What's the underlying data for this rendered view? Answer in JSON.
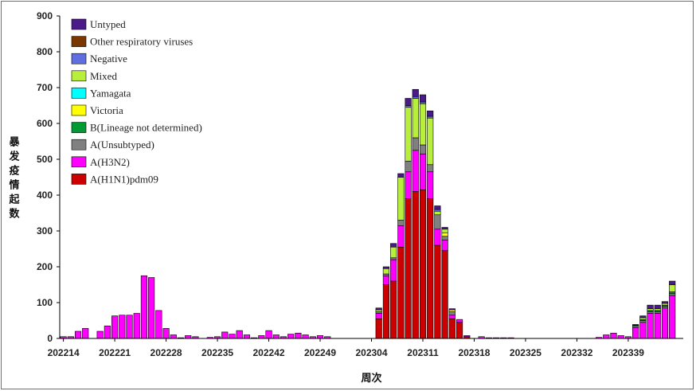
{
  "chart_data": {
    "type": "bar",
    "stacked": true,
    "ylabel": "暴发疫情起数",
    "xlabel": "周次",
    "ylim": [
      0,
      900
    ],
    "yticks": [
      0,
      100,
      200,
      300,
      400,
      500,
      600,
      700,
      800,
      900
    ],
    "xtick_labels": [
      "202214",
      "202221",
      "202228",
      "202235",
      "202242",
      "202249",
      "202304",
      "202311",
      "202318",
      "202325",
      "202332",
      "202339"
    ],
    "xtick_every": 7,
    "grid": false,
    "legend_position": "top-left",
    "legend_order": [
      "Untyped",
      "Other respiratory viruses",
      "Negative",
      "Mixed",
      "Yamagata",
      "Victoria",
      "B(Lineage not determined)",
      "A(Unsubtyped)",
      "A(H3N2)",
      "A(H1N1)pdm09"
    ],
    "colors": {
      "A(H1N1)pdm09": "#cc0000",
      "A(H3N2)": "#ff00ff",
      "A(Unsubtyped)": "#808080",
      "B(Lineage not determined)": "#009933",
      "Victoria": "#ffff00",
      "Yamagata": "#00ffff",
      "Mixed": "#b7ef3c",
      "Negative": "#5f6ee0",
      "Other respiratory viruses": "#7a3800",
      "Untyped": "#4b1a8a"
    },
    "weeks": [
      "202214",
      "202215",
      "202216",
      "202217",
      "202218",
      "202219",
      "202220",
      "202221",
      "202222",
      "202223",
      "202224",
      "202225",
      "202226",
      "202227",
      "202228",
      "202229",
      "202230",
      "202231",
      "202232",
      "202233",
      "202234",
      "202235",
      "202236",
      "202237",
      "202238",
      "202239",
      "202240",
      "202241",
      "202242",
      "202243",
      "202244",
      "202245",
      "202246",
      "202247",
      "202248",
      "202249",
      "202250",
      "202251",
      "202252",
      "202301",
      "202302",
      "202303",
      "202304",
      "202305",
      "202306",
      "202307",
      "202308",
      "202309",
      "202310",
      "202311",
      "202312",
      "202313",
      "202314",
      "202315",
      "202316",
      "202317",
      "202318",
      "202319",
      "202320",
      "202321",
      "202322",
      "202323",
      "202324",
      "202325",
      "202326",
      "202327",
      "202328",
      "202329",
      "202330",
      "202331",
      "202332",
      "202333",
      "202334",
      "202335",
      "202336",
      "202337",
      "202338",
      "202339",
      "202340",
      "202341",
      "202342",
      "202343",
      "202344",
      "202345",
      "202346"
    ],
    "series": [
      {
        "name": "A(H1N1)pdm09",
        "values": [
          0,
          0,
          0,
          0,
          0,
          0,
          0,
          0,
          0,
          0,
          0,
          0,
          0,
          0,
          0,
          0,
          0,
          0,
          0,
          0,
          0,
          0,
          0,
          0,
          0,
          0,
          0,
          0,
          0,
          0,
          0,
          0,
          0,
          0,
          0,
          0,
          0,
          0,
          0,
          0,
          0,
          0,
          0,
          55,
          150,
          160,
          255,
          390,
          410,
          415,
          390,
          260,
          245,
          55,
          45,
          5,
          0,
          0,
          0,
          0,
          0,
          0,
          0,
          0,
          0,
          0,
          0,
          0,
          0,
          0,
          0,
          0,
          0,
          0,
          0,
          0,
          0,
          0,
          0,
          0,
          0,
          0,
          0,
          0,
          0
        ]
      },
      {
        "name": "A(H3N2)",
        "values": [
          5,
          5,
          20,
          28,
          0,
          20,
          35,
          63,
          65,
          65,
          70,
          175,
          170,
          78,
          28,
          10,
          2,
          8,
          5,
          0,
          3,
          5,
          18,
          12,
          22,
          10,
          2,
          8,
          22,
          10,
          5,
          12,
          15,
          10,
          5,
          8,
          5,
          0,
          0,
          0,
          0,
          0,
          0,
          15,
          25,
          60,
          60,
          75,
          115,
          100,
          75,
          45,
          30,
          10,
          8,
          3,
          0,
          5,
          2,
          2,
          2,
          2,
          0,
          0,
          0,
          0,
          0,
          0,
          0,
          0,
          0,
          0,
          0,
          3,
          10,
          15,
          8,
          5,
          30,
          45,
          70,
          70,
          85,
          120,
          0
        ]
      },
      {
        "name": "A(Unsubtyped)",
        "values": [
          0,
          0,
          0,
          0,
          0,
          0,
          0,
          0,
          0,
          0,
          0,
          0,
          0,
          0,
          0,
          0,
          0,
          0,
          0,
          0,
          0,
          0,
          0,
          0,
          0,
          0,
          0,
          0,
          0,
          0,
          0,
          0,
          0,
          0,
          0,
          0,
          0,
          0,
          0,
          0,
          0,
          0,
          0,
          5,
          5,
          5,
          15,
          30,
          35,
          25,
          20,
          40,
          10,
          10,
          0,
          0,
          0,
          0,
          0,
          0,
          0,
          0,
          0,
          0,
          0,
          0,
          0,
          0,
          0,
          0,
          0,
          0,
          0,
          0,
          0,
          0,
          0,
          0,
          5,
          5,
          5,
          5,
          5,
          5,
          0
        ]
      },
      {
        "name": "B(Lineage not determined)",
        "values": [
          0,
          0,
          0,
          0,
          0,
          0,
          0,
          0,
          0,
          0,
          0,
          0,
          0,
          0,
          0,
          0,
          0,
          0,
          0,
          0,
          0,
          0,
          0,
          0,
          0,
          0,
          0,
          0,
          0,
          0,
          0,
          0,
          0,
          0,
          0,
          0,
          0,
          0,
          0,
          0,
          0,
          0,
          0,
          0,
          0,
          0,
          0,
          0,
          0,
          0,
          0,
          0,
          0,
          0,
          0,
          0,
          0,
          0,
          0,
          0,
          0,
          0,
          0,
          0,
          0,
          0,
          0,
          0,
          0,
          0,
          0,
          0,
          0,
          0,
          0,
          0,
          0,
          0,
          2,
          3,
          3,
          3,
          3,
          5,
          0
        ]
      },
      {
        "name": "Victoria",
        "values": [
          0,
          0,
          0,
          0,
          0,
          0,
          0,
          0,
          0,
          0,
          0,
          0,
          0,
          0,
          0,
          0,
          0,
          0,
          0,
          0,
          0,
          0,
          0,
          0,
          0,
          0,
          0,
          0,
          0,
          0,
          0,
          0,
          0,
          0,
          0,
          0,
          0,
          0,
          0,
          0,
          0,
          0,
          0,
          0,
          0,
          0,
          0,
          0,
          0,
          0,
          0,
          0,
          10,
          5,
          0,
          0,
          0,
          0,
          0,
          0,
          0,
          0,
          0,
          0,
          0,
          0,
          0,
          0,
          0,
          0,
          0,
          0,
          0,
          0,
          0,
          0,
          0,
          0,
          0,
          0,
          0,
          0,
          0,
          0,
          0
        ]
      },
      {
        "name": "Yamagata",
        "values": [
          0,
          0,
          0,
          0,
          0,
          0,
          0,
          0,
          0,
          0,
          0,
          0,
          0,
          0,
          0,
          0,
          0,
          0,
          0,
          0,
          0,
          0,
          0,
          0,
          0,
          0,
          0,
          0,
          0,
          0,
          0,
          0,
          0,
          0,
          0,
          0,
          0,
          0,
          0,
          0,
          0,
          0,
          0,
          0,
          0,
          0,
          0,
          0,
          0,
          0,
          0,
          0,
          0,
          0,
          0,
          0,
          0,
          0,
          0,
          0,
          0,
          0,
          0,
          0,
          0,
          0,
          0,
          0,
          0,
          0,
          0,
          0,
          0,
          0,
          0,
          0,
          0,
          0,
          0,
          0,
          0,
          0,
          0,
          0,
          0
        ]
      },
      {
        "name": "Mixed",
        "values": [
          0,
          0,
          0,
          0,
          0,
          0,
          0,
          0,
          0,
          0,
          0,
          0,
          0,
          0,
          0,
          0,
          0,
          0,
          0,
          0,
          0,
          0,
          0,
          0,
          0,
          0,
          0,
          0,
          0,
          0,
          0,
          0,
          0,
          0,
          0,
          0,
          0,
          0,
          0,
          0,
          0,
          0,
          0,
          5,
          15,
          30,
          120,
          150,
          110,
          115,
          130,
          10,
          10,
          0,
          0,
          0,
          0,
          0,
          0,
          0,
          0,
          0,
          0,
          0,
          0,
          0,
          0,
          0,
          0,
          0,
          0,
          0,
          0,
          0,
          0,
          0,
          0,
          0,
          0,
          5,
          5,
          5,
          5,
          20,
          0
        ]
      },
      {
        "name": "Negative",
        "values": [
          0,
          0,
          0,
          0,
          0,
          0,
          0,
          0,
          0,
          0,
          0,
          0,
          0,
          0,
          0,
          0,
          0,
          0,
          0,
          0,
          0,
          0,
          0,
          0,
          0,
          0,
          0,
          0,
          0,
          0,
          0,
          0,
          0,
          0,
          0,
          0,
          0,
          0,
          0,
          0,
          0,
          0,
          0,
          0,
          0,
          0,
          0,
          5,
          5,
          5,
          5,
          5,
          0,
          0,
          0,
          0,
          0,
          0,
          0,
          0,
          0,
          0,
          0,
          0,
          0,
          0,
          0,
          0,
          0,
          0,
          0,
          0,
          0,
          0,
          0,
          0,
          0,
          0,
          0,
          0,
          0,
          0,
          0,
          0,
          0
        ]
      },
      {
        "name": "Other respiratory viruses",
        "values": [
          0,
          0,
          0,
          0,
          0,
          0,
          0,
          0,
          0,
          0,
          0,
          0,
          0,
          0,
          0,
          0,
          0,
          0,
          0,
          0,
          0,
          0,
          0,
          0,
          0,
          0,
          0,
          0,
          0,
          0,
          0,
          0,
          0,
          0,
          0,
          0,
          0,
          0,
          0,
          0,
          0,
          0,
          0,
          0,
          0,
          0,
          0,
          0,
          0,
          0,
          0,
          0,
          0,
          0,
          0,
          0,
          0,
          0,
          0,
          0,
          0,
          0,
          0,
          0,
          0,
          0,
          0,
          0,
          0,
          0,
          0,
          0,
          0,
          0,
          0,
          0,
          0,
          0,
          0,
          0,
          0,
          0,
          0,
          0,
          0
        ]
      },
      {
        "name": "Untyped",
        "values": [
          0,
          0,
          0,
          0,
          0,
          0,
          0,
          0,
          0,
          0,
          0,
          0,
          0,
          0,
          0,
          0,
          0,
          0,
          0,
          0,
          0,
          0,
          0,
          0,
          0,
          0,
          0,
          0,
          0,
          0,
          0,
          0,
          0,
          0,
          0,
          0,
          0,
          0,
          0,
          0,
          0,
          0,
          0,
          5,
          5,
          10,
          10,
          20,
          20,
          20,
          15,
          10,
          5,
          3,
          0,
          0,
          0,
          0,
          0,
          0,
          0,
          0,
          0,
          0,
          0,
          0,
          0,
          0,
          0,
          0,
          0,
          0,
          0,
          0,
          0,
          0,
          0,
          0,
          2,
          5,
          10,
          10,
          5,
          10,
          0
        ]
      }
    ]
  }
}
